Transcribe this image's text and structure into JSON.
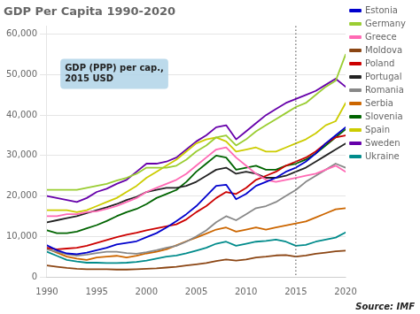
{
  "chart_data": {
    "type": "line",
    "title": "GDP Per Capita 1990-2020",
    "x": [
      1990,
      1991,
      1992,
      1993,
      1994,
      1995,
      1996,
      1997,
      1998,
      1999,
      2000,
      2001,
      2002,
      2003,
      2004,
      2005,
      2006,
      2007,
      2008,
      2009,
      2010,
      2011,
      2012,
      2013,
      2014,
      2015,
      2016,
      2017,
      2018,
      2019,
      2020
    ],
    "series": [
      {
        "name": "Estonia",
        "color": "#0000CD",
        "values": [
          7800,
          6600,
          5800,
          5600,
          6000,
          6600,
          7200,
          8000,
          8400,
          8800,
          9800,
          10800,
          12200,
          13800,
          15500,
          17500,
          20000,
          22500,
          22800,
          19200,
          20500,
          22500,
          23500,
          24500,
          26000,
          27000,
          28500,
          30500,
          33000,
          35000,
          37000
        ]
      },
      {
        "name": "Germany",
        "color": "#9ACD32",
        "values": [
          21500,
          21500,
          21500,
          21500,
          22000,
          22500,
          23000,
          23800,
          24500,
          25500,
          27000,
          27000,
          27000,
          27500,
          29000,
          31000,
          32500,
          34500,
          35000,
          32500,
          34000,
          36000,
          37500,
          39000,
          40500,
          42000,
          43000,
          45000,
          47000,
          48500,
          55000
        ]
      },
      {
        "name": "Greece",
        "color": "#FF69B4",
        "values": [
          15000,
          15000,
          15500,
          15500,
          16000,
          16200,
          16800,
          17500,
          18500,
          19500,
          21000,
          22000,
          23000,
          24000,
          25500,
          27500,
          29500,
          31500,
          32000,
          29500,
          27500,
          25500,
          24000,
          23500,
          24000,
          24500,
          25000,
          25500,
          26500,
          27500,
          26000
        ]
      },
      {
        "name": "Moldova",
        "color": "#8B4513",
        "values": [
          2800,
          2500,
          2200,
          2000,
          1900,
          1900,
          1900,
          1800,
          1800,
          1900,
          2000,
          2100,
          2300,
          2500,
          2800,
          3100,
          3400,
          3900,
          4300,
          4000,
          4300,
          4800,
          5000,
          5300,
          5400,
          5000,
          5300,
          5700,
          6000,
          6300,
          6500
        ]
      },
      {
        "name": "Poland",
        "color": "#CC0000",
        "values": [
          7200,
          6800,
          7000,
          7200,
          7700,
          8400,
          9100,
          9800,
          10400,
          10900,
          11500,
          12000,
          12500,
          13000,
          14200,
          16000,
          17500,
          19500,
          21000,
          20500,
          22000,
          24000,
          25000,
          26000,
          27500,
          28500,
          29500,
          31000,
          33000,
          34500,
          35000
        ]
      },
      {
        "name": "Portugal",
        "color": "#222222",
        "values": [
          13500,
          14000,
          14500,
          15000,
          15800,
          16500,
          17200,
          18000,
          19000,
          19800,
          21000,
          21500,
          22000,
          22000,
          22500,
          23500,
          25000,
          26500,
          27000,
          25500,
          26000,
          25500,
          24500,
          24500,
          25000,
          26000,
          27000,
          28500,
          30000,
          31500,
          33000
        ]
      },
      {
        "name": "Romania",
        "color": "#888888",
        "values": [
          6800,
          6200,
          5600,
          5200,
          5500,
          5900,
          6200,
          6200,
          5900,
          5700,
          6100,
          6600,
          7200,
          7700,
          8700,
          10000,
          11500,
          13500,
          15000,
          14000,
          15500,
          17000,
          17500,
          18500,
          20000,
          21500,
          23500,
          25000,
          26500,
          28000,
          27000
        ]
      },
      {
        "name": "Serbia",
        "color": "#CC6600",
        "values": [
          7000,
          6000,
          5000,
          4500,
          4200,
          4800,
          5000,
          5200,
          4800,
          5200,
          5800,
          6200,
          6800,
          7800,
          8800,
          9700,
          10700,
          11700,
          12200,
          11200,
          11700,
          12200,
          11700,
          12200,
          12700,
          13200,
          13700,
          14700,
          15700,
          16700,
          17000
        ]
      },
      {
        "name": "Slovenia",
        "color": "#006400",
        "values": [
          11500,
          10800,
          10800,
          11200,
          12000,
          12800,
          13800,
          15000,
          16000,
          16800,
          18000,
          19500,
          20500,
          21500,
          23500,
          26000,
          28000,
          30000,
          29500,
          26500,
          27000,
          27500,
          26500,
          26500,
          27500,
          28000,
          29000,
          30500,
          32500,
          34500,
          36500
        ]
      },
      {
        "name": "Spain",
        "color": "#CCCC00",
        "values": [
          16500,
          16500,
          16500,
          16000,
          16500,
          17500,
          18500,
          19500,
          21000,
          22500,
          24500,
          26000,
          27500,
          29000,
          31000,
          33000,
          34000,
          34500,
          33500,
          31000,
          31500,
          32000,
          31000,
          31000,
          32000,
          33000,
          34000,
          35500,
          37500,
          38500,
          43000
        ]
      },
      {
        "name": "Sweden",
        "color": "#6600AA",
        "values": [
          20000,
          19500,
          19000,
          18500,
          19500,
          21000,
          21800,
          23000,
          24000,
          26000,
          28000,
          28000,
          28500,
          29500,
          31500,
          33500,
          35000,
          37000,
          37500,
          34000,
          36000,
          38000,
          40000,
          41500,
          43000,
          44000,
          45000,
          46000,
          47500,
          49000,
          47000
        ]
      },
      {
        "name": "Ukraine",
        "color": "#008B8B",
        "values": [
          6200,
          5200,
          4200,
          3800,
          3500,
          3500,
          3400,
          3400,
          3500,
          3700,
          4000,
          4500,
          5000,
          5300,
          5800,
          6500,
          7200,
          8200,
          8700,
          7700,
          8200,
          8700,
          8900,
          9200,
          8700,
          7700,
          7900,
          8700,
          9200,
          9700,
          11000
        ]
      }
    ],
    "xlim": [
      1990,
      2020
    ],
    "xticks": [
      1990,
      1995,
      2000,
      2005,
      2010,
      2015,
      2020
    ],
    "ylim": [
      0,
      62000
    ],
    "yticks": [
      0,
      {
        "value": 10000,
        "label": "10,000"
      },
      {
        "value": 20000,
        "label": "20,000"
      },
      {
        "value": 30000,
        "label": "30,000"
      },
      {
        "value": 40000,
        "label": "40,000"
      },
      {
        "value": 50000,
        "label": "50,000"
      },
      {
        "value": 60000,
        "label": "60,000"
      }
    ],
    "vline": {
      "x": 2015,
      "line_style": "dotted",
      "color": "#666666"
    },
    "annotations": [
      {
        "text": "GDP (PPP) per cap.,\n2015 USD",
        "color": "#B0D4E8"
      },
      {
        "text": "Source: IMF"
      }
    ],
    "grid": "y",
    "legend": "right"
  }
}
